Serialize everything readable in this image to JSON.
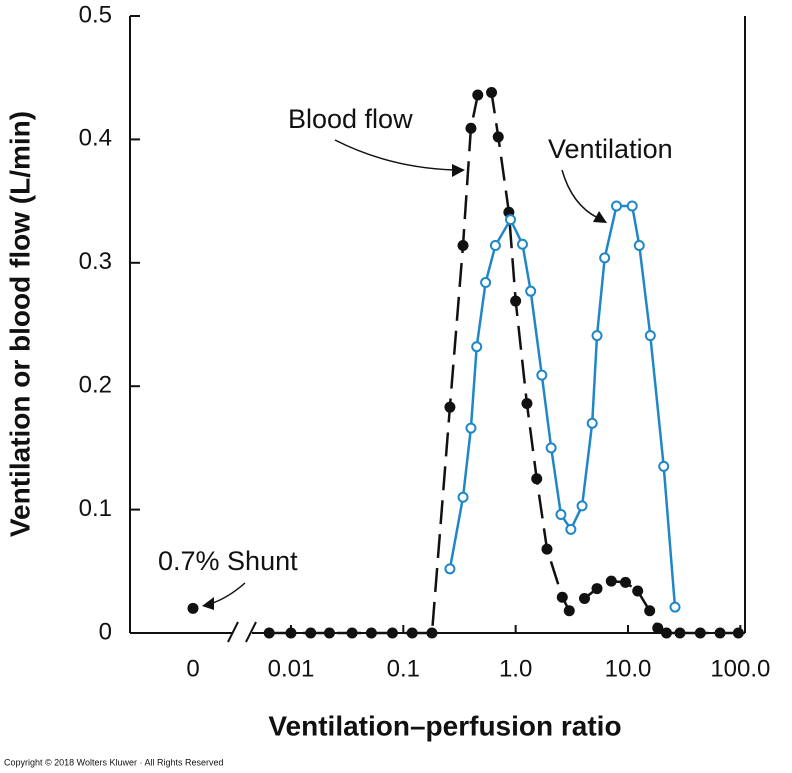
{
  "chart_data": {
    "type": "scatter",
    "xlabel": "Ventilation–perfusion ratio",
    "ylabel": "Ventilation or blood flow (L/min)",
    "xscale": "log",
    "xlim": [
      0.0045,
      110
    ],
    "xticks": [
      0.01,
      0.1,
      {
        "value": 1,
        "label": "1.0"
      },
      {
        "value": 10,
        "label": "10.0"
      },
      {
        "value": 100,
        "label": "100.0"
      }
    ],
    "ylim": [
      0,
      0.5
    ],
    "yticks": [
      0,
      0.1,
      0.2,
      0.3,
      0.4,
      0.5
    ],
    "shunt": {
      "x_label": "0",
      "value": 0.02,
      "annotation": "0.7% Shunt"
    },
    "series": [
      {
        "name": "Blood flow",
        "color": "#111111",
        "marker": "filled",
        "line": "dashed",
        "x": [
          0.0064,
          0.01,
          0.015,
          0.022,
          0.035,
          0.052,
          0.08,
          0.12,
          0.18,
          0.26,
          0.34,
          0.4,
          0.46,
          0.61,
          0.7,
          0.87,
          1.0,
          1.26,
          1.54,
          1.9,
          2.6,
          3.0,
          4.1,
          5.3,
          7.1,
          9.5,
          12.2,
          15.6,
          18.4,
          22,
          29,
          44,
          66,
          96
        ],
        "values": [
          0,
          0,
          0,
          0,
          0,
          0,
          0,
          0,
          0,
          0.183,
          0.314,
          0.409,
          0.436,
          0.438,
          0.402,
          0.341,
          0.269,
          0.186,
          0.125,
          0.068,
          0.029,
          0.018,
          0.028,
          0.036,
          0.042,
          0.041,
          0.034,
          0.018,
          0.004,
          0,
          0,
          0,
          0,
          0
        ]
      },
      {
        "name": "Ventilation",
        "color": "#1f87c8",
        "marker": "open",
        "line": "solid",
        "x": [
          0.26,
          0.34,
          0.4,
          0.45,
          0.54,
          0.66,
          0.9,
          1.15,
          1.36,
          1.71,
          2.07,
          2.53,
          3.1,
          3.9,
          4.8,
          5.3,
          6.2,
          7.9,
          10.9,
          12.6,
          15.8,
          20.8,
          26.2
        ],
        "values": [
          0.052,
          0.11,
          0.166,
          0.232,
          0.284,
          0.314,
          0.335,
          0.315,
          0.277,
          0.209,
          0.15,
          0.096,
          0.084,
          0.103,
          0.17,
          0.241,
          0.304,
          0.346,
          0.346,
          0.314,
          0.241,
          0.135,
          0.021
        ]
      }
    ],
    "copyright": "Copyright © 2018 Wolters Kluwer · All Rights Reserved"
  }
}
